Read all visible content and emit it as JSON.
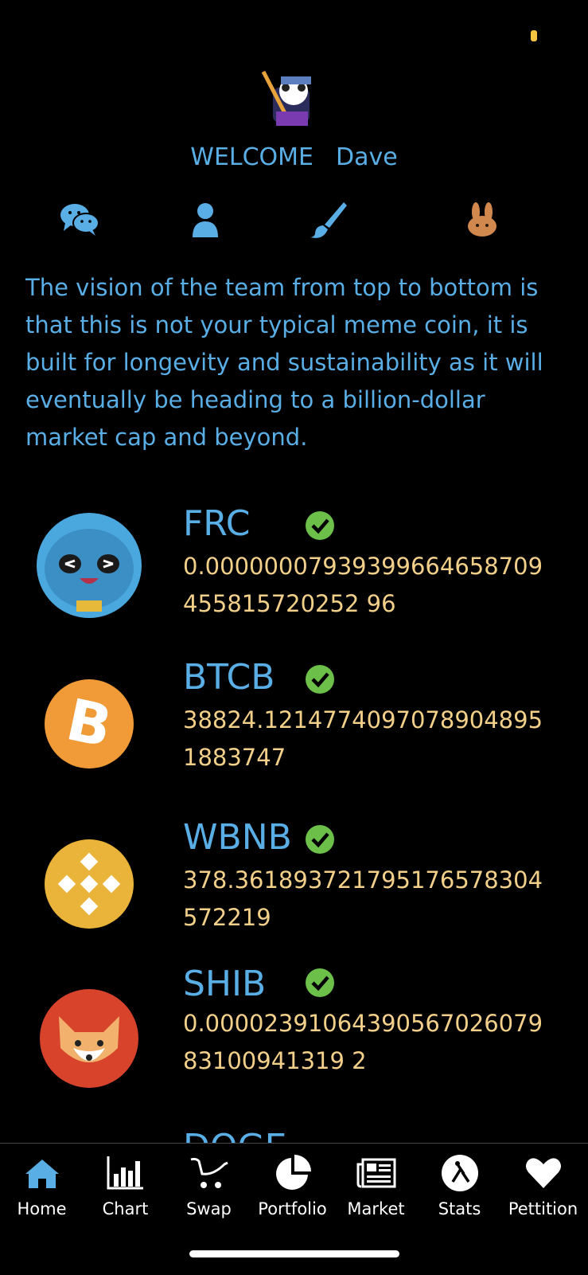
{
  "welcome": {
    "greeting": "WELCOME",
    "user": "Dave"
  },
  "quick_icons": [
    "wechat-icon",
    "user-icon",
    "brush-icon",
    "pancake-bunny-icon"
  ],
  "vision_text": "The vision of the team from top to bottom is that this is not your typical meme coin, it is built for longevity and sustainability as it will eventually be heading to a billion-dollar market cap and beyond.",
  "coins": [
    {
      "symbol": "FRC",
      "price": "0.00000007939399664658709455815720252 96",
      "verified": true
    },
    {
      "symbol": "BTCB",
      "price": "38824.12147740970789048951883747",
      "verified": true
    },
    {
      "symbol": "WBNB",
      "price": "378.361893721795176578304572219",
      "verified": true
    },
    {
      "symbol": "SHIB",
      "price": "0.0000239106439056702607983100941319 2",
      "verified": true
    }
  ],
  "partial_coin": "DOGE",
  "tabs": [
    {
      "label": "Home",
      "icon": "home-icon"
    },
    {
      "label": "Chart",
      "icon": "bar-chart-icon"
    },
    {
      "label": "Swap",
      "icon": "cart-icon"
    },
    {
      "label": "Portfolio",
      "icon": "pie-chart-icon"
    },
    {
      "label": "Market",
      "icon": "newspaper-icon"
    },
    {
      "label": "Stats",
      "icon": "stats-icon"
    },
    {
      "label": "Pettition",
      "icon": "heart-icon"
    }
  ],
  "colors": {
    "accent": "#5aaee6",
    "price": "#f3d08a",
    "check": "#6cc04a",
    "background": "#000000"
  }
}
